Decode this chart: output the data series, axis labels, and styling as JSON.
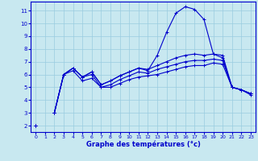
{
  "xlabel": "Graphe des températures (°c)",
  "background_color": "#c8e8f0",
  "line_color": "#0000cc",
  "grid_color": "#99cce0",
  "xlim_min": -0.5,
  "xlim_max": 23.5,
  "ylim_min": 1.5,
  "ylim_max": 11.7,
  "xticks": [
    0,
    1,
    2,
    3,
    4,
    5,
    6,
    7,
    8,
    9,
    10,
    11,
    12,
    13,
    14,
    15,
    16,
    17,
    18,
    19,
    20,
    21,
    22,
    23
  ],
  "yticks": [
    2,
    3,
    4,
    5,
    6,
    7,
    8,
    9,
    10,
    11
  ],
  "lines": [
    [
      2.0,
      null,
      3.0,
      6.0,
      6.5,
      5.8,
      6.2,
      5.2,
      5.5,
      5.9,
      6.2,
      6.5,
      6.3,
      7.5,
      9.3,
      10.8,
      11.3,
      11.1,
      10.3,
      7.6,
      7.3,
      5.0,
      4.8,
      4.5
    ],
    [
      2.0,
      null,
      3.0,
      6.0,
      6.5,
      5.8,
      6.2,
      5.2,
      5.5,
      5.9,
      6.2,
      6.5,
      6.4,
      6.7,
      7.0,
      7.3,
      7.5,
      7.6,
      7.5,
      7.6,
      7.5,
      5.0,
      4.8,
      4.5
    ],
    [
      2.0,
      null,
      3.0,
      6.0,
      6.5,
      5.8,
      6.0,
      5.0,
      5.2,
      5.6,
      5.9,
      6.2,
      6.1,
      6.4,
      6.6,
      6.8,
      7.0,
      7.1,
      7.1,
      7.2,
      7.1,
      5.0,
      4.8,
      4.5
    ],
    [
      2.0,
      null,
      3.0,
      6.0,
      6.3,
      5.5,
      5.7,
      5.0,
      5.0,
      5.3,
      5.6,
      5.8,
      5.9,
      6.0,
      6.2,
      6.4,
      6.6,
      6.7,
      6.7,
      6.9,
      6.8,
      5.0,
      4.8,
      4.4
    ]
  ]
}
